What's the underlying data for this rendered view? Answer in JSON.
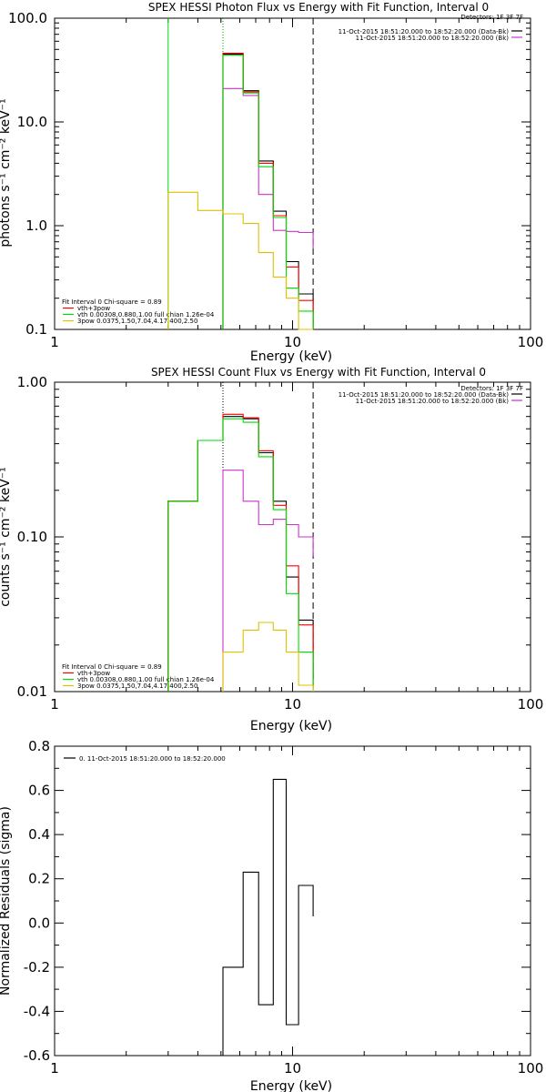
{
  "chart_data": [
    {
      "type": "line",
      "title": "SPEX HESSI Photon Flux vs Energy with Fit Function, Interval 0",
      "xlabel": "Energy (keV)",
      "ylabel": "photons s⁻¹ cm⁻² keV⁻¹",
      "xscale": "log",
      "yscale": "log",
      "xlim": [
        1,
        100
      ],
      "ylim": [
        0.1,
        100
      ],
      "xticks": [
        "1",
        "10",
        "100"
      ],
      "yticks": [
        "0.1",
        "1.0",
        "10.0",
        "100.0"
      ],
      "detectors_label": "Detectors: 1F 3F 7F",
      "legend_right": [
        {
          "text": "11-Oct-2015 18:51:20.000 to 18:52:20.000 (Data-Bk)",
          "color": "#000000"
        },
        {
          "text": "11-Oct-2015 18:51:20.000 to 18:52:20.000 (Bk)",
          "color": "#cc33cc"
        }
      ],
      "legend_left": [
        {
          "text": "Fit Interval 0   Chi-square = 0.89",
          "color": ""
        },
        {
          "text": "vth+3pow",
          "color": "#ff0000"
        },
        {
          "text": "vth 0.00308,0.880,1.00  full chian 1.26e-04",
          "color": "#00dd00"
        },
        {
          "text": "3pow 0.0375,1.50,7.04,4.17,400,2.50",
          "color": "#e0c000"
        }
      ],
      "vlines": [
        {
          "x": 3.0,
          "style": "solid",
          "color": "#00dd00"
        },
        {
          "x": 5.1,
          "style": "dotted",
          "color": "#00aa00"
        },
        {
          "x": 12.2,
          "style": "dashed",
          "color": "#000000"
        }
      ],
      "bin_edges": [
        3.0,
        4.0,
        5.1,
        6.2,
        7.2,
        8.3,
        9.4,
        10.6,
        12.2
      ],
      "series": [
        {
          "name": "Data-Bk",
          "color": "#000000",
          "values": [
            null,
            null,
            45,
            20,
            4.2,
            1.38,
            0.45,
            0.22,
            0.1
          ]
        },
        {
          "name": "Bk",
          "color": "#cc33cc",
          "values": [
            null,
            null,
            21,
            18,
            2.0,
            0.9,
            0.88,
            0.86,
            0.6
          ]
        },
        {
          "name": "vth+3pow",
          "color": "#ff0000",
          "values": [
            null,
            null,
            46,
            19.5,
            4.0,
            1.25,
            0.4,
            0.19,
            0.1
          ]
        },
        {
          "name": "vth",
          "color": "#00dd00",
          "values": [
            null,
            null,
            44,
            19,
            3.7,
            1.2,
            0.25,
            0.15,
            0.09
          ]
        },
        {
          "name": "3pow",
          "color": "#e0c000",
          "values": [
            2.1,
            1.4,
            1.3,
            1.05,
            0.55,
            0.32,
            0.2,
            0.1,
            0.07
          ]
        }
      ]
    },
    {
      "type": "line",
      "title": "SPEX HESSI Count Flux vs Energy with Fit Function, Interval 0",
      "xlabel": "Energy (keV)",
      "ylabel": "counts s⁻¹ cm⁻² keV⁻¹",
      "xscale": "log",
      "yscale": "log",
      "xlim": [
        1,
        100
      ],
      "ylim": [
        0.01,
        1.0
      ],
      "xticks": [
        "1",
        "10",
        "100"
      ],
      "yticks": [
        "0.01",
        "0.10",
        "1.00"
      ],
      "detectors_label": "Detectors: 1F 3F 7F",
      "legend_right": [
        {
          "text": "11-Oct-2015 18:51:20.000 to 18:52:20.000 (Data-Bk)",
          "color": "#000000"
        },
        {
          "text": "11-Oct-2015 18:51:20.000 to 18:52:20.000 (Bk)",
          "color": "#cc33cc"
        }
      ],
      "legend_left": [
        {
          "text": "Fit Interval 0   Chi-square = 0.89",
          "color": ""
        },
        {
          "text": "vth+3pow",
          "color": "#ff0000"
        },
        {
          "text": "vth 0.00308,0.880,1.00  full chian 1.26e-04",
          "color": "#00dd00"
        },
        {
          "text": "3pow 0.0375,1.50,7.04,4.17,400,2.50",
          "color": "#e0c000"
        }
      ],
      "vlines": [
        {
          "x": 5.1,
          "style": "dotted",
          "color": "#000000"
        },
        {
          "x": 12.2,
          "style": "dashed",
          "color": "#000000"
        }
      ],
      "bin_edges": [
        3.0,
        4.0,
        5.1,
        6.2,
        7.2,
        8.3,
        9.4,
        10.6,
        12.2
      ],
      "series": [
        {
          "name": "Data-Bk",
          "color": "#000000",
          "values": [
            0.17,
            0.42,
            0.6,
            0.58,
            0.35,
            0.17,
            0.055,
            0.029,
            0.012
          ]
        },
        {
          "name": "Bk",
          "color": "#cc33cc",
          "values": [
            null,
            null,
            0.27,
            0.17,
            0.12,
            0.13,
            0.12,
            0.1,
            0.075
          ]
        },
        {
          "name": "vth+3pow",
          "color": "#ff0000",
          "values": [
            0.17,
            0.42,
            0.62,
            0.59,
            0.36,
            0.16,
            0.065,
            0.027,
            0.011
          ]
        },
        {
          "name": "vth",
          "color": "#00dd00",
          "values": [
            0.17,
            0.42,
            0.58,
            0.55,
            0.33,
            0.15,
            0.043,
            0.018,
            0.009
          ]
        },
        {
          "name": "3pow",
          "color": "#e0c000",
          "values": [
            null,
            null,
            0.018,
            0.025,
            0.028,
            0.025,
            0.018,
            0.011,
            0.008
          ]
        }
      ]
    },
    {
      "type": "line",
      "title": "",
      "xlabel": "Energy (keV)",
      "ylabel": "Normalized Residuals (sigma)",
      "xscale": "log",
      "yscale": "linear",
      "xlim": [
        1,
        100
      ],
      "ylim": [
        -0.6,
        0.8
      ],
      "xticks": [
        "1",
        "10",
        "100"
      ],
      "yticks": [
        "-0.6",
        "-0.4",
        "-0.2",
        "0.0",
        "0.2",
        "0.4",
        "0.6",
        "0.8"
      ],
      "legend": "0. 11-Oct-2015 18:51:20.000 to 18:52:20.000",
      "bin_edges": [
        5.1,
        6.2,
        7.2,
        8.3,
        9.4,
        10.6,
        12.2
      ],
      "series": [
        {
          "name": "0. 11-Oct-2015 18:51:20.000 to 18:52:20.000",
          "color": "#000000",
          "values": [
            -0.2,
            0.23,
            -0.37,
            0.65,
            -0.46,
            0.17,
            0.03
          ]
        }
      ]
    }
  ]
}
